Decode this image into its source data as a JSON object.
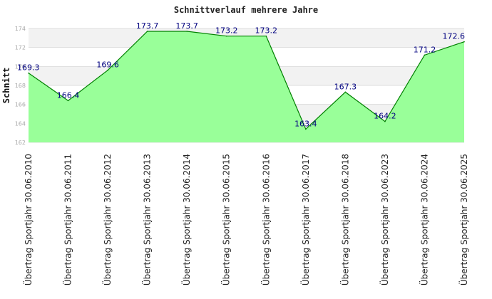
{
  "chart_data": {
    "type": "area",
    "title": "Schnittverlauf mehrere Jahre",
    "ylabel": "Schnitt",
    "xlabel": "",
    "ylim": [
      162,
      174
    ],
    "yticks": [
      162,
      164,
      166,
      168,
      170,
      172,
      174
    ],
    "grid": true,
    "categories": [
      "Übertrag Sportjahr 30.06.2010",
      "Übertrag Sportjahr 30.06.2011",
      "Übertrag Sportjahr 30.06.2012",
      "Übertrag Sportjahr 30.06.2013",
      "Übertrag Sportjahr 30.06.2014",
      "Übertrag Sportjahr 30.06.2015",
      "Übertrag Sportjahr 30.06.2016",
      "Übertrag Sportjahr 30.06.2017",
      "Übertrag Sportjahr 30.06.2018",
      "Übertrag Sportjahr 30.06.2023",
      "Übertrag Sportjahr 30.06.2024",
      "Übertrag Sportjahr 30.06.2025"
    ],
    "values": [
      169.3,
      166.4,
      169.6,
      173.7,
      173.7,
      173.2,
      173.2,
      163.4,
      167.3,
      164.2,
      171.2,
      172.6
    ],
    "data_labels": [
      "169.3",
      "166.4",
      "169.6",
      "173.7",
      "173.7",
      "173.2",
      "173.2",
      "163.4",
      "167.3",
      "164.2",
      "171.2",
      "172.6"
    ],
    "colors": {
      "fill": "#99ff99",
      "line": "#008000",
      "band": "#f2f2f2",
      "grid": "#dddddd",
      "data_label": "#000080"
    }
  }
}
